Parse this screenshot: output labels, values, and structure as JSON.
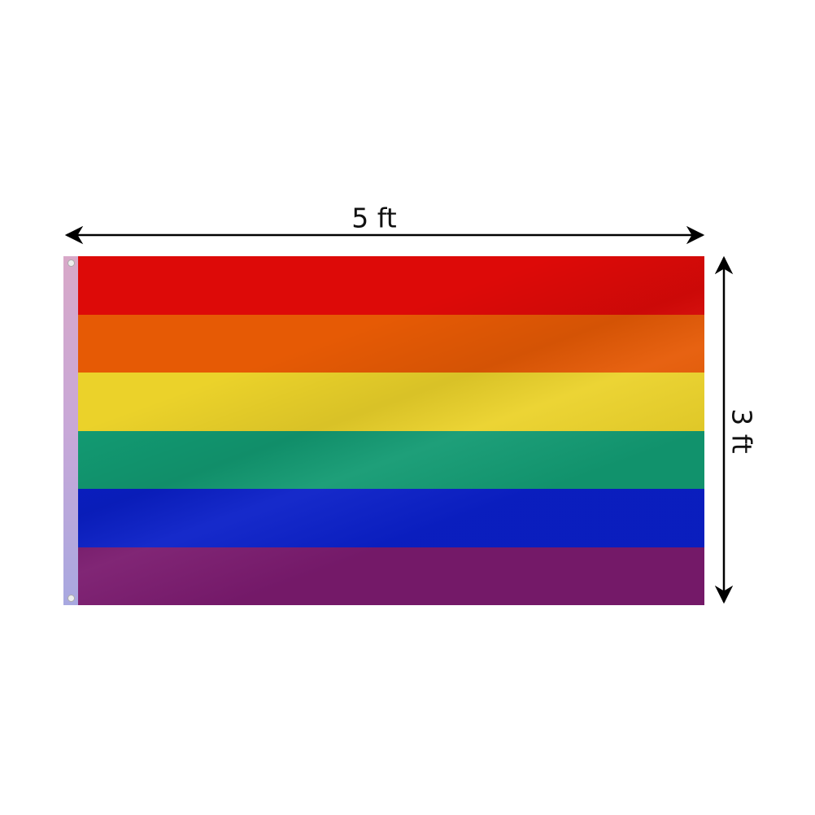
{
  "dimensions": {
    "width_label": "5 ft",
    "height_label": "3 ft"
  },
  "flag": {
    "stripe_colors": [
      "#dd0a08",
      "#e65a05",
      "#ebd22a",
      "#129a72",
      "#0a1fc8",
      "#7a1a6e"
    ]
  }
}
